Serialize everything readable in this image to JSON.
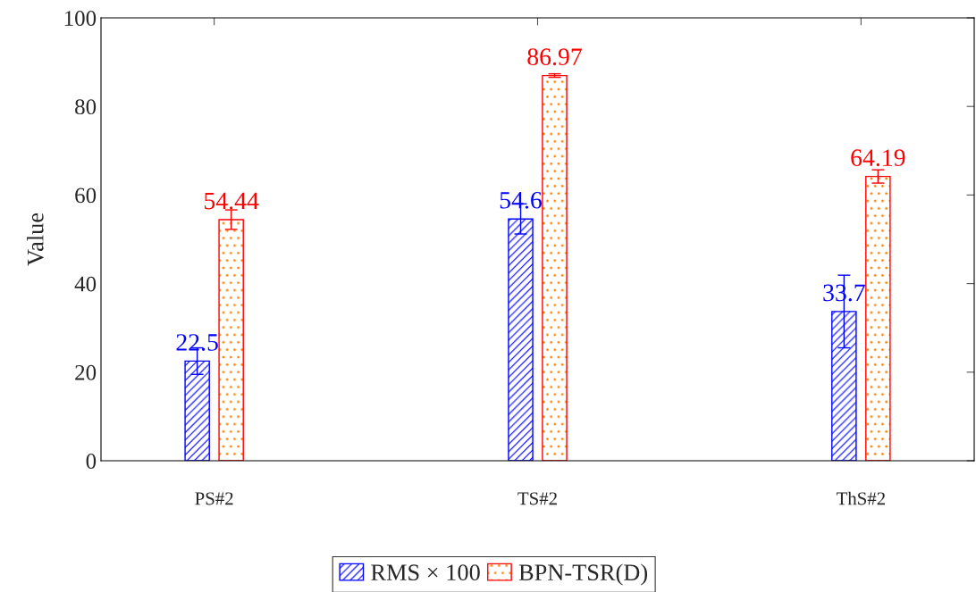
{
  "chart_data": {
    "type": "bar",
    "ylabel": "Value",
    "categories": [
      "PS#2",
      "TS#2",
      "ThS#2"
    ],
    "series": [
      {
        "name": "RMS × 100",
        "color": "#0000ff",
        "values": [
          22.5,
          54.6,
          33.7
        ],
        "errors": [
          3.0,
          3.4,
          8.2
        ]
      },
      {
        "name": "BPN-TSR(D)",
        "color": "#ff0000",
        "values": [
          54.44,
          86.97,
          64.19
        ],
        "errors": [
          2.2,
          0.4,
          1.5
        ]
      }
    ],
    "ylim": [
      0,
      100
    ],
    "yticks": [
      0,
      20,
      40,
      60,
      80,
      100
    ],
    "grid": false,
    "legend": "bottom",
    "data_labels": true
  }
}
